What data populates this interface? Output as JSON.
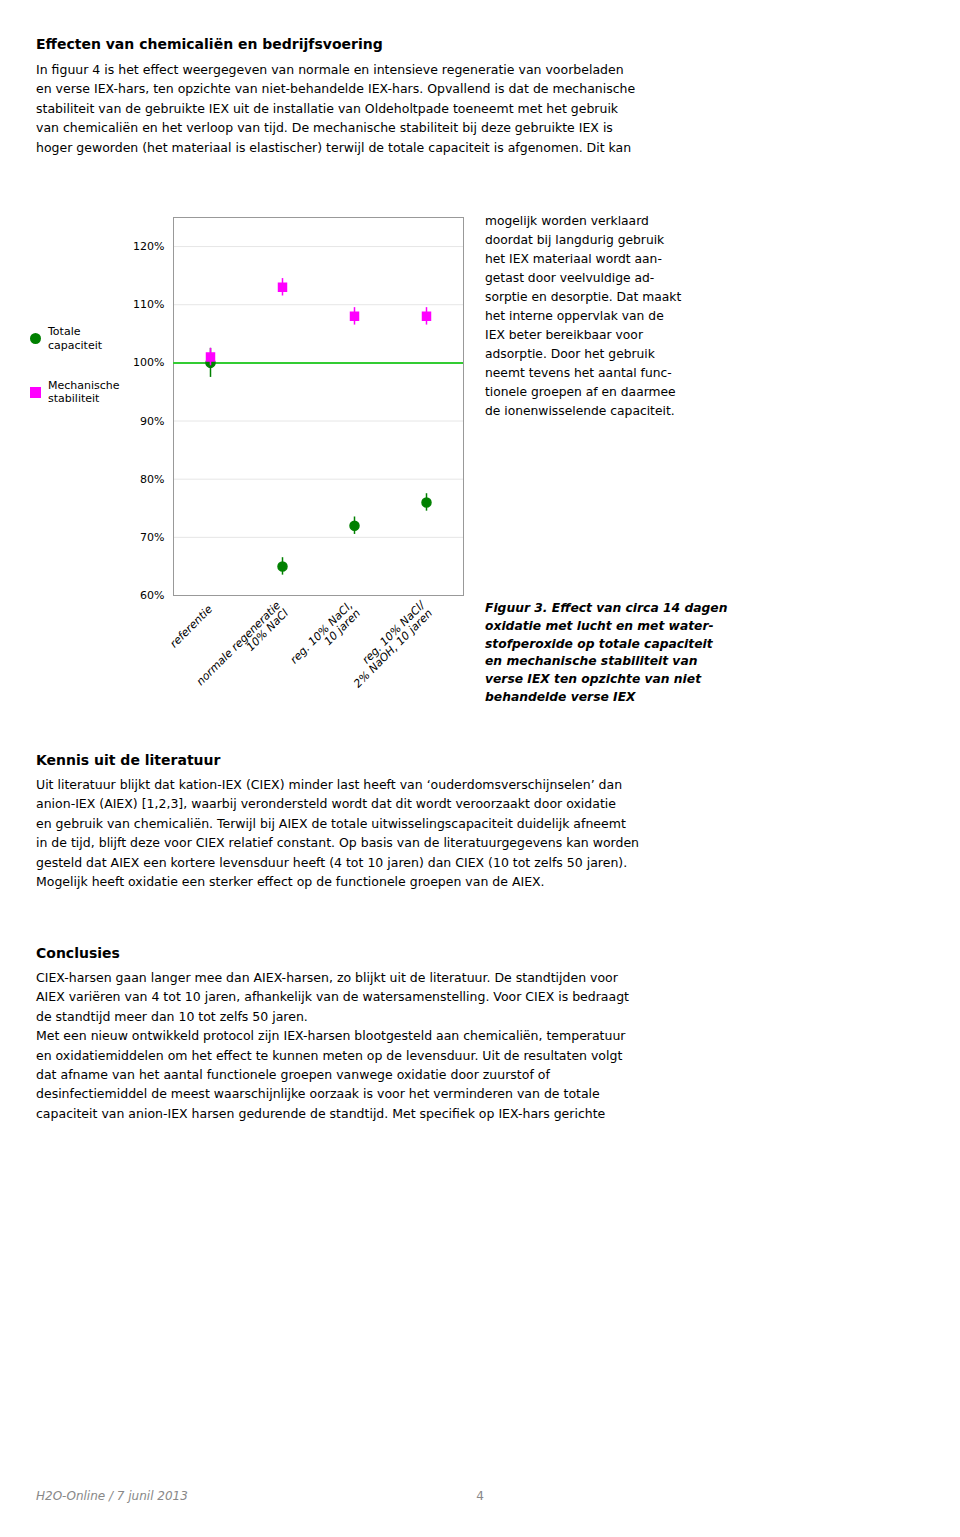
{
  "chart_data": {
    "type": "scatter",
    "categories": [
      "referentie",
      "normale regeneratie\n10% NaCl",
      "reg. 10% NaCl,\n10 jaren",
      "reg. 10% NaCl/\n2% NaOH, 10 jaren"
    ],
    "series": [
      {
        "name": "Totale\ncapaciteit",
        "color": "#008000",
        "marker": "circle",
        "values": [
          100,
          65,
          72,
          76
        ],
        "errors": [
          2.5,
          1.5,
          1.5,
          1.5
        ]
      },
      {
        "name": "Mechanische\nstabiliteit",
        "color": "#FF00FF",
        "marker": "square",
        "values": [
          101,
          113,
          108,
          108
        ],
        "errors": [
          1.5,
          1.5,
          1.5,
          1.5
        ]
      }
    ],
    "reference_lines": [
      {
        "value": 100,
        "color": "#33CC33"
      }
    ],
    "ylim": [
      60,
      125
    ],
    "yticks": [
      {
        "value": 60,
        "label": "60%"
      },
      {
        "value": 70,
        "label": "70%"
      },
      {
        "value": 80,
        "label": "80%"
      },
      {
        "value": 90,
        "label": "90%"
      },
      {
        "value": 100,
        "label": "100%"
      },
      {
        "value": 110,
        "label": "110%"
      },
      {
        "value": 120,
        "label": "120%"
      }
    ],
    "grid": true,
    "legend": "left",
    "annotations": [
      "Effecten van chemicaliën en bedrijfsvoering",
      "In figuur 4 is het effect weergegeven van normale en intensieve regeneratie van voorbeladen\nen verse IEX-hars, ten opzichte van niet-behandelde IEX-hars. Opvallend is dat de mechanische\nstabiliteit van de gebruikte IEX uit de installatie van Oldeholtpade toeneemt met het gebruik\nvan chemicaliën en het verloop van tijd. De mechanische stabiliteit bij deze gebruikte IEX is\nhoger geworden (het materiaal is elastischer) terwijl de totale capaciteit is afgenomen. Dit kan",
      "mogelijk worden verklaard\ndoordat bij langdurig gebruik\nhet IEX materiaal wordt aan-\ngetast door veelvuldige ad-\nsorptie en desorptie. Dat maakt\nhet interne oppervlak van de\nIEX beter bereikbaar voor\nadsorptie. Door het gebruik\nneemt tevens het aantal func-\ntionele groepen af en daarmee\nde ionenwisselende capaciteit.",
      "Figuur 3. Effect van circa 14 dagen\noxidatie met lucht en met water-\nstofperoxide op totale capaciteit\nen mechanische stabiliteit van\nverse IEX ten opzichte van niet\nbehandelde verse IEX",
      "Kennis uit de literatuur",
      "Uit literatuur blijkt dat kation-IEX (CIEX) minder last heeft van ‘ouderdomsverschijnselen’ dan\nanion-IEX (AIEX) [1,2,3], waarbij verondersteld wordt dat dit wordt veroorzaakt door oxidatie\nen gebruik van chemicaliën. Terwijl bij AIEX de totale uitwisselingscapaciteit duidelijk afneemt\nin de tijd, blijft deze voor CIEX relatief constant. Op basis van de literatuurgegevens kan worden\ngesteld dat AIEX een kortere levensduur heeft (4 tot 10 jaren) dan CIEX (10 tot zelfs 50 jaren).\nMogelijk heeft oxidatie een sterker effect op de functionele groepen van de AIEX.",
      "Conclusies",
      "CIEX-harsen gaan langer mee dan AIEX-harsen, zo blijkt uit de literatuur. De standtijden voor\nAIEX variëren van 4 tot 10 jaren, afhankelijk van de watersamenstelling. Voor CIEX is bedraagt\nde standtijd meer dan 10 tot zelfs 50 jaren.\nMet een nieuw ontwikkeld protocol zijn IEX-harsen blootgesteld aan chemicaliën, temperatuur\nen oxidatiemiddelen om het effect te kunnen meten op de levensduur. Uit de resultaten volgt\ndat afname van het aantal functionele groepen vanwege oxidatie door zuurstof of\ndesinfectiemiddel de meest waarschijnlijke oorzaak is voor het verminderen van de totale\ncapaciteit van anion-IEX harsen gedurende de standtijd. Met specifiek op IEX-hars gerichte",
      "H2O-Online / 7 junil 2013",
      "4"
    ]
  }
}
